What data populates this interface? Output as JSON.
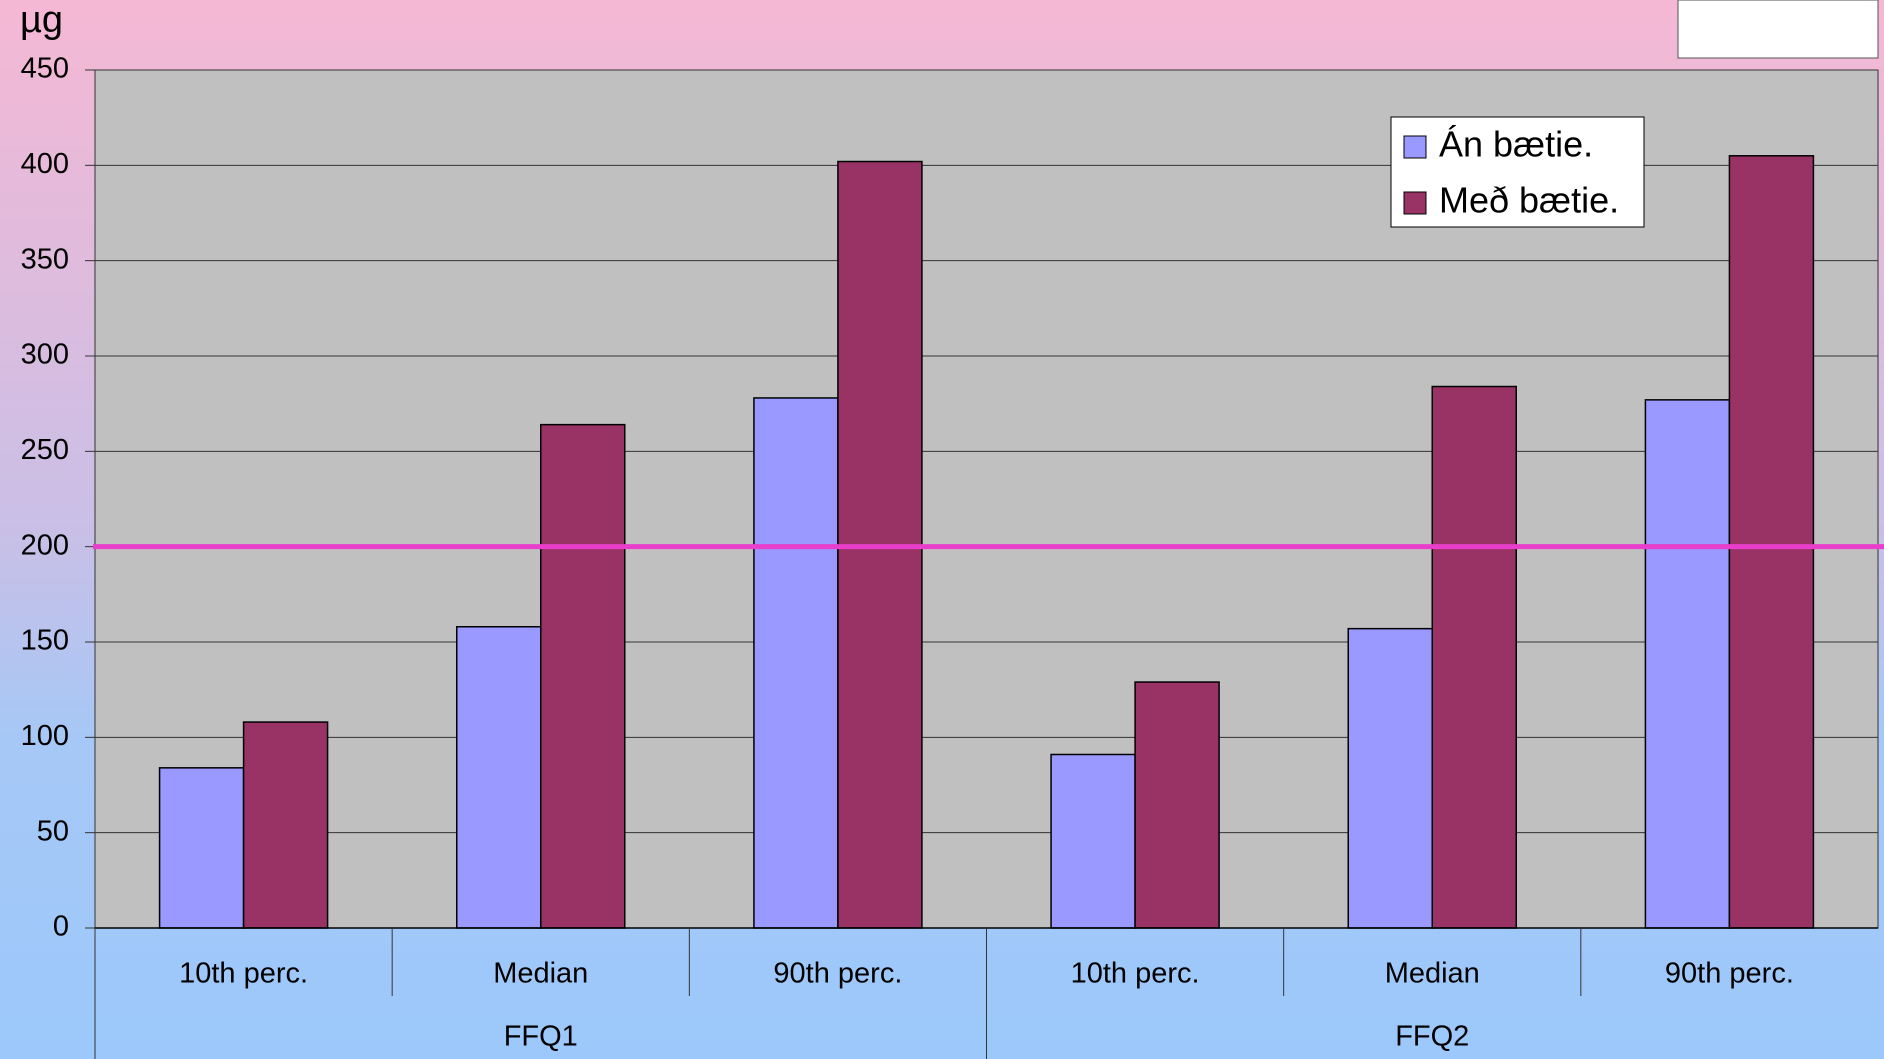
{
  "chart_data": {
    "type": "bar",
    "y_label": "µg",
    "categories": [
      "10th perc.",
      "Median",
      "90th perc.",
      "10th perc.",
      "Median",
      "90th perc."
    ],
    "groups": [
      "FFQ1",
      "FFQ2"
    ],
    "series": [
      {
        "name": "Án bætie.",
        "color": "#9999ff",
        "values": [
          84,
          158,
          278,
          91,
          157,
          277
        ]
      },
      {
        "name": "Með bætie.",
        "color": "#993366",
        "values": [
          108,
          264,
          402,
          129,
          284,
          405
        ]
      }
    ],
    "reference_line": {
      "value": 200,
      "color": "#e83ecb"
    },
    "ylim": [
      0,
      450
    ],
    "yticks": [
      0,
      50,
      100,
      150,
      200,
      250,
      300,
      350,
      400,
      450
    ],
    "grid": true,
    "legend": "top-right"
  }
}
